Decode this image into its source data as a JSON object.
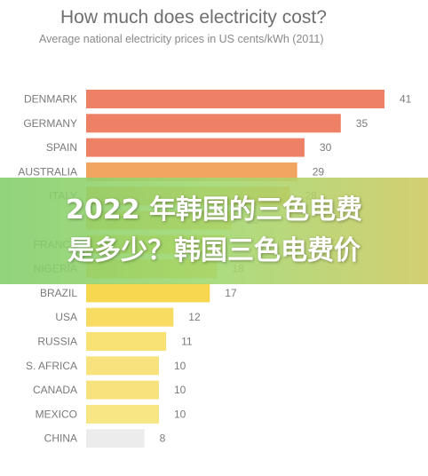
{
  "header": {
    "title": "How much does electricity cost?",
    "subtitle": "Average national electricity prices in US cents/kWh (2011)"
  },
  "chart_data": {
    "type": "bar",
    "orientation": "horizontal",
    "title": "How much does electricity cost?",
    "subtitle": "Average national electricity prices in US cents/kWh (2011)",
    "categories": [
      "DENMARK",
      "GERMANY",
      "SPAIN",
      "AUSTRALIA",
      "ITALY",
      "",
      "FRANCE",
      "NIGERIA",
      "BRAZIL",
      "USA",
      "RUSSIA",
      "S. AFRICA",
      "CANADA",
      "MEXICO",
      "CHINA"
    ],
    "values": [
      41,
      35,
      30,
      29,
      28,
      20,
      19,
      18,
      17,
      12,
      11,
      10,
      10,
      10,
      8
    ],
    "value_labels": [
      "41",
      "35",
      "30",
      "29",
      "28",
      "20",
      "",
      "18",
      "17",
      "12",
      "11",
      "10",
      "10",
      "10",
      "8"
    ],
    "colors": [
      "#ee8066",
      "#ee8066",
      "#ee8066",
      "#f2a560",
      "#f2b055",
      "#f4c24e",
      "#f6cf4a",
      "#f7d24f",
      "#f7d650",
      "#f8dc62",
      "#f8e273",
      "#f8e27e",
      "#f8e27e",
      "#f8e584",
      "#ececec"
    ],
    "xlim": [
      0,
      41
    ],
    "grid": false,
    "legend": "none"
  },
  "overlay": {
    "line1": "2022 年韩国的三色电费",
    "line2": "是多少？韩国三色电费价"
  }
}
